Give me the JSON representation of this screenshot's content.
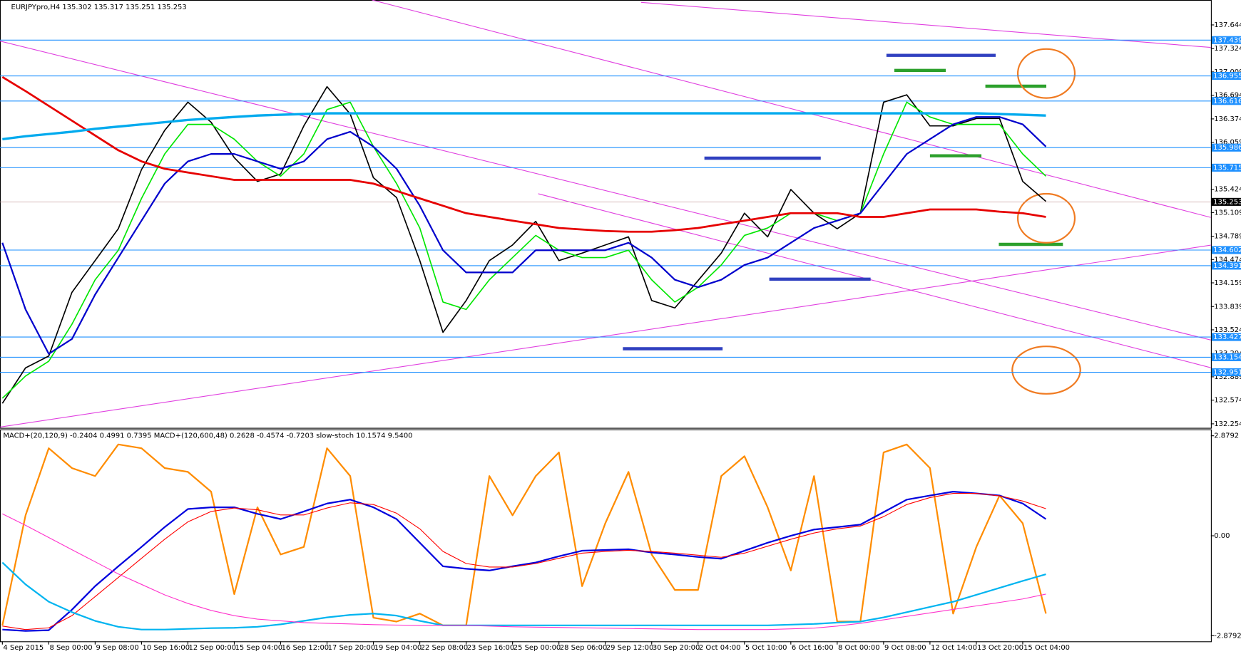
{
  "chart_data": [
    {
      "type": "line",
      "title": "EURJPYpro,H4  135.302 135.317 135.251 135.253",
      "categories": [
        "4 Sep 2015",
        null,
        "8 Sep 00:00",
        null,
        "9 Sep 08:00",
        null,
        "10 Sep 16:00",
        null,
        "12 Sep 00:00",
        null,
        "15 Sep 04:00",
        null,
        "16 Sep 12:00",
        null,
        "17 Sep 20:00",
        null,
        "19 Sep 04:00",
        null,
        "22 Sep 08:00",
        null,
        "23 Sep 16:00",
        null,
        "25 Sep 00:00",
        null,
        "28 Sep 06:00",
        null,
        "29 Sep 12:00",
        null,
        "30 Sep 20:00",
        null,
        "2 Oct 04:00",
        null,
        "5 Oct 10:00",
        null,
        "6 Oct 16:00",
        null,
        "8 Oct 00:00",
        null,
        "9 Oct 08:00",
        null,
        "12 Oct 14:00",
        null,
        "13 Oct 20:00",
        null,
        "15 Oct 04:00",
        null
      ],
      "series": [
        {
          "color": "#000000",
          "line_width": 1.5,
          "values": [
            132.53,
            133.01,
            133.17,
            134.03,
            134.46,
            134.89,
            135.69,
            136.22,
            136.6,
            136.33,
            135.85,
            135.53,
            135.63,
            136.28,
            136.81,
            136.44,
            135.58,
            135.31,
            134.46,
            133.49,
            133.92,
            134.46,
            134.67,
            134.99,
            134.46,
            134.56,
            134.67,
            134.78,
            133.92,
            133.82,
            134.19,
            134.56,
            135.1,
            134.78,
            135.42,
            135.1,
            134.89,
            135.1,
            136.6,
            136.7,
            136.28,
            136.28,
            136.38,
            136.38,
            135.53,
            135.26
          ]
        },
        {
          "color": "#00e600",
          "line_width": 1.5,
          "values": [
            132.6,
            132.9,
            133.1,
            133.6,
            134.2,
            134.6,
            135.3,
            135.9,
            136.3,
            136.3,
            136.1,
            135.8,
            135.6,
            135.9,
            136.5,
            136.6,
            136.0,
            135.5,
            134.9,
            133.9,
            133.8,
            134.2,
            134.5,
            134.8,
            134.6,
            134.5,
            134.5,
            134.6,
            134.2,
            133.9,
            134.1,
            134.4,
            134.8,
            134.9,
            135.1,
            135.1,
            135.0,
            135.1,
            135.9,
            136.6,
            136.4,
            136.3,
            136.3,
            136.3,
            135.9,
            135.6
          ]
        },
        {
          "color": "#0000cc",
          "line_width": 2,
          "values": [
            134.7,
            133.8,
            133.2,
            133.4,
            134.0,
            134.5,
            135.0,
            135.5,
            135.8,
            135.9,
            135.9,
            135.8,
            135.7,
            135.8,
            136.1,
            136.2,
            136.0,
            135.7,
            135.2,
            134.6,
            134.3,
            134.3,
            134.3,
            134.6,
            134.6,
            134.6,
            134.6,
            134.7,
            134.5,
            134.2,
            134.1,
            134.2,
            134.4,
            134.5,
            134.7,
            134.9,
            135.0,
            135.1,
            135.5,
            135.9,
            136.1,
            136.3,
            136.4,
            136.4,
            136.3,
            136.0
          ]
        },
        {
          "color": "#e60000",
          "line_width": 2.5,
          "values": [
            136.94,
            136.75,
            136.55,
            136.35,
            136.15,
            135.95,
            135.8,
            135.7,
            135.65,
            135.6,
            135.55,
            135.55,
            135.55,
            135.55,
            135.55,
            135.55,
            135.5,
            135.4,
            135.3,
            135.2,
            135.1,
            135.05,
            135.0,
            134.95,
            134.9,
            134.88,
            134.86,
            134.85,
            134.85,
            134.87,
            134.9,
            134.95,
            135.0,
            135.05,
            135.1,
            135.1,
            135.1,
            135.05,
            135.05,
            135.1,
            135.15,
            135.15,
            135.15,
            135.12,
            135.1,
            135.05
          ]
        },
        {
          "color": "#00aaee",
          "line_width": 3,
          "values": [
            136.1,
            136.14,
            136.17,
            136.2,
            136.24,
            136.27,
            136.3,
            136.33,
            136.36,
            136.38,
            136.4,
            136.42,
            136.43,
            136.44,
            136.45,
            136.45,
            136.45,
            136.45,
            136.45,
            136.45,
            136.45,
            136.45,
            136.45,
            136.45,
            136.45,
            136.45,
            136.45,
            136.45,
            136.45,
            136.45,
            136.45,
            136.45,
            136.45,
            136.45,
            136.45,
            136.45,
            136.45,
            136.45,
            136.45,
            136.45,
            136.45,
            136.45,
            136.45,
            136.44,
            136.43,
            136.42
          ]
        }
      ],
      "ylim": [
        132.2,
        137.97
      ],
      "yticks": [
        137.644,
        137.324,
        137.009,
        136.694,
        136.374,
        136.059,
        135.424,
        135.109,
        134.789,
        134.474,
        134.159,
        133.839,
        133.524,
        133.204,
        132.889,
        132.574,
        132.254
      ],
      "levels": [
        137.439,
        136.955,
        136.616,
        135.986,
        135.715,
        134.602,
        134.391,
        133.427,
        133.154,
        132.951
      ],
      "level_color": "#1e90ff",
      "last_price": 135.253
    },
    {
      "type": "line",
      "title": "MACD+(20,120,9) -0.2404 0.4991 0.7395  MACD+(120,600,48) 0.2628 -0.4574 -0.7203  slow-stoch 10.1574 9.5400",
      "series": [
        {
          "color": "#ff8c00",
          "line_width": 2,
          "values": [
            -2.58,
            0.59,
            2.52,
            1.95,
            1.72,
            2.63,
            2.52,
            1.95,
            1.84,
            1.27,
            -1.68,
            0.82,
            -0.54,
            -0.32,
            2.52,
            1.72,
            -2.36,
            -2.47,
            -2.24,
            -2.58,
            -2.58,
            1.72,
            0.59,
            1.72,
            2.4,
            -1.45,
            0.36,
            1.84,
            -0.54,
            -1.56,
            -1.56,
            1.72,
            2.29,
            0.82,
            -1.0,
            1.72,
            -2.47,
            -2.47,
            2.4,
            2.63,
            1.95,
            -2.24,
            -0.32,
            1.16,
            0.36,
            -2.24
          ]
        },
        {
          "color": "#0000dd",
          "line_width": 2,
          "values": [
            -2.7,
            -2.74,
            -2.72,
            -2.13,
            -1.45,
            -0.88,
            -0.32,
            0.25,
            0.77,
            0.82,
            0.82,
            0.63,
            0.48,
            0.7,
            0.93,
            1.04,
            0.82,
            0.48,
            -0.2,
            -0.88,
            -0.95,
            -1.0,
            -0.88,
            -0.77,
            -0.59,
            -0.43,
            -0.41,
            -0.39,
            -0.48,
            -0.54,
            -0.61,
            -0.66,
            -0.43,
            -0.2,
            0.0,
            0.18,
            0.25,
            0.32,
            0.68,
            1.04,
            1.16,
            1.27,
            1.22,
            1.16,
            0.93,
            0.48
          ]
        },
        {
          "color": "#ff0000",
          "line_width": 1,
          "values": [
            -2.6,
            -2.7,
            -2.65,
            -2.3,
            -1.75,
            -1.2,
            -0.65,
            -0.1,
            0.4,
            0.7,
            0.8,
            0.75,
            0.6,
            0.6,
            0.8,
            0.95,
            0.9,
            0.65,
            0.2,
            -0.45,
            -0.8,
            -0.9,
            -0.9,
            -0.8,
            -0.65,
            -0.5,
            -0.45,
            -0.42,
            -0.45,
            -0.5,
            -0.56,
            -0.62,
            -0.5,
            -0.3,
            -0.1,
            0.08,
            0.2,
            0.28,
            0.55,
            0.9,
            1.1,
            1.22,
            1.22,
            1.15,
            1.0,
            0.78
          ]
        },
        {
          "color": "#00b4f0",
          "line_width": 2,
          "values": [
            -0.77,
            -1.4,
            -1.9,
            -2.2,
            -2.45,
            -2.62,
            -2.7,
            -2.7,
            -2.68,
            -2.66,
            -2.65,
            -2.62,
            -2.55,
            -2.45,
            -2.35,
            -2.28,
            -2.24,
            -2.3,
            -2.45,
            -2.58,
            -2.58,
            -2.58,
            -2.58,
            -2.58,
            -2.58,
            -2.58,
            -2.58,
            -2.58,
            -2.58,
            -2.58,
            -2.58,
            -2.58,
            -2.58,
            -2.58,
            -2.56,
            -2.54,
            -2.5,
            -2.47,
            -2.35,
            -2.2,
            -2.05,
            -1.9,
            -1.7,
            -1.5,
            -1.3,
            -1.11
          ]
        },
        {
          "color": "#ff33cc",
          "line_width": 1,
          "values": [
            0.63,
            0.3,
            -0.05,
            -0.4,
            -0.75,
            -1.1,
            -1.4,
            -1.7,
            -1.95,
            -2.15,
            -2.3,
            -2.4,
            -2.45,
            -2.5,
            -2.52,
            -2.54,
            -2.56,
            -2.57,
            -2.58,
            -2.58,
            -2.58,
            -2.6,
            -2.62,
            -2.63,
            -2.64,
            -2.65,
            -2.66,
            -2.67,
            -2.68,
            -2.69,
            -2.7,
            -2.7,
            -2.7,
            -2.7,
            -2.68,
            -2.66,
            -2.6,
            -2.52,
            -2.42,
            -2.32,
            -2.22,
            -2.12,
            -2.02,
            -1.92,
            -1.82,
            -1.68
          ]
        }
      ],
      "ylim": [
        -3.04,
        3.04
      ],
      "yticks": [
        2.8792,
        {
          "value": 0,
          "label": "0.00"
        },
        -2.8792
      ]
    }
  ]
}
